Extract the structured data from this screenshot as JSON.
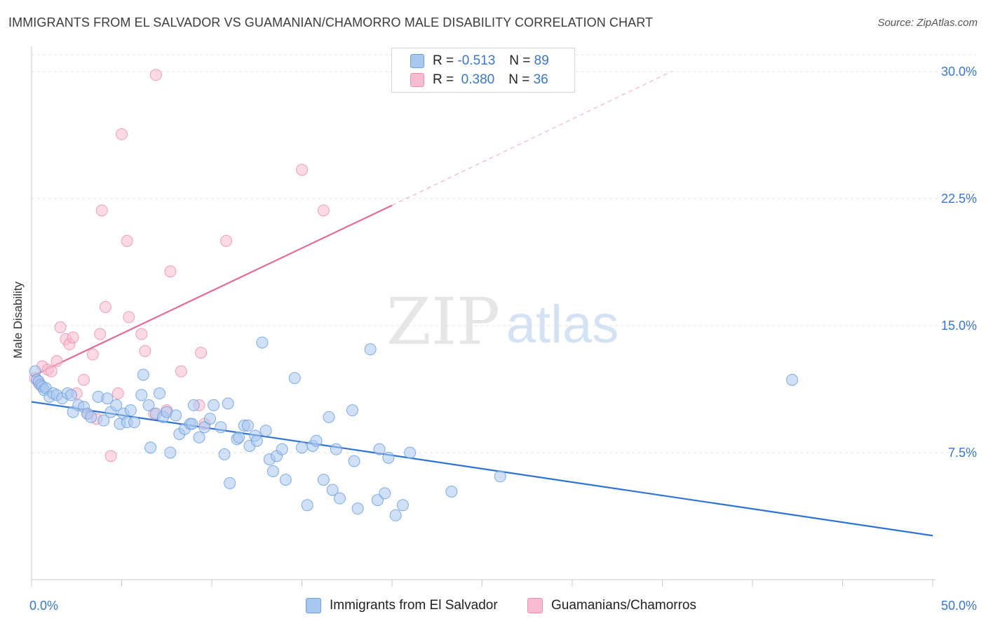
{
  "title": "IMMIGRANTS FROM EL SALVADOR VS GUAMANIAN/CHAMORRO MALE DISABILITY CORRELATION CHART",
  "source": "Source: ZipAtlas.com",
  "watermark": {
    "zip": "ZIP",
    "atlas": "atlas"
  },
  "colors": {
    "blue_fill": "#a9c8f0",
    "blue_stroke": "#6d9fdc",
    "blue_line": "#2f73d0",
    "pink_fill": "#f7bcd0",
    "pink_stroke": "#e893ae",
    "pink_line": "#e06c96",
    "tick_text": "#3a78c4",
    "grid": "#e0e0e0"
  },
  "legend": {
    "rows": [
      {
        "r_label": "R =",
        "r_value": "-0.513",
        "n_label": "N =",
        "n_value": "89"
      },
      {
        "r_label": "R =",
        "r_value": " 0.380",
        "n_label": "N =",
        "n_value": "36"
      }
    ]
  },
  "chart_data": {
    "type": "scatter",
    "title": "IMMIGRANTS FROM EL SALVADOR VS GUAMANIAN/CHAMORRO MALE DISABILITY CORRELATION CHART",
    "xlabel": "",
    "ylabel": "Male Disability",
    "xlim": [
      0,
      50
    ],
    "ylim": [
      0,
      31.2
    ],
    "x_tick_labels": [
      "0.0%",
      "50.0%"
    ],
    "y_ticks": [
      7.5,
      15.0,
      22.5,
      30.0
    ],
    "y_tick_labels": [
      "7.5%",
      "15.0%",
      "22.5%",
      "30.0%"
    ],
    "grid": true,
    "legend_position": "top-center",
    "series": [
      {
        "name": "Immigrants from El Salvador",
        "color": "#a9c8f0",
        "regression": {
          "x0": 0,
          "y0": 10.5,
          "x1": 50,
          "y1": 2.6
        },
        "points": [
          [
            0.2,
            12.3
          ],
          [
            0.3,
            11.8
          ],
          [
            0.4,
            11.7
          ],
          [
            0.5,
            11.5
          ],
          [
            0.6,
            11.4
          ],
          [
            0.7,
            11.2
          ],
          [
            0.8,
            11.3
          ],
          [
            1.0,
            10.8
          ],
          [
            1.2,
            11.0
          ],
          [
            1.4,
            10.9
          ],
          [
            1.7,
            10.7
          ],
          [
            2.0,
            11.0
          ],
          [
            2.2,
            10.9
          ],
          [
            2.3,
            9.9
          ],
          [
            2.6,
            10.3
          ],
          [
            2.9,
            10.2
          ],
          [
            3.1,
            9.8
          ],
          [
            3.3,
            9.6
          ],
          [
            3.7,
            10.8
          ],
          [
            4.0,
            9.4
          ],
          [
            4.2,
            10.7
          ],
          [
            4.4,
            9.9
          ],
          [
            4.7,
            10.3
          ],
          [
            4.9,
            9.2
          ],
          [
            5.1,
            9.8
          ],
          [
            5.3,
            9.3
          ],
          [
            5.5,
            10.0
          ],
          [
            5.7,
            9.3
          ],
          [
            6.1,
            10.9
          ],
          [
            6.2,
            12.1
          ],
          [
            6.5,
            10.3
          ],
          [
            6.6,
            7.8
          ],
          [
            6.9,
            9.8
          ],
          [
            7.1,
            11.0
          ],
          [
            7.3,
            9.6
          ],
          [
            7.5,
            9.9
          ],
          [
            7.7,
            7.5
          ],
          [
            8.0,
            9.7
          ],
          [
            8.2,
            8.6
          ],
          [
            8.5,
            8.9
          ],
          [
            8.8,
            9.2
          ],
          [
            8.9,
            9.2
          ],
          [
            9.0,
            10.3
          ],
          [
            9.3,
            8.4
          ],
          [
            9.6,
            9.0
          ],
          [
            9.9,
            9.5
          ],
          [
            10.1,
            10.3
          ],
          [
            10.5,
            9.0
          ],
          [
            10.7,
            7.4
          ],
          [
            10.9,
            10.4
          ],
          [
            11.0,
            5.7
          ],
          [
            11.4,
            8.3
          ],
          [
            11.5,
            8.4
          ],
          [
            11.8,
            9.1
          ],
          [
            12.0,
            9.1
          ],
          [
            12.1,
            7.9
          ],
          [
            12.4,
            8.5
          ],
          [
            12.5,
            8.2
          ],
          [
            12.8,
            14.0
          ],
          [
            13.0,
            8.8
          ],
          [
            13.2,
            7.1
          ],
          [
            13.4,
            6.4
          ],
          [
            13.6,
            7.3
          ],
          [
            13.9,
            7.7
          ],
          [
            14.1,
            5.9
          ],
          [
            14.6,
            11.9
          ],
          [
            15.0,
            7.8
          ],
          [
            15.3,
            4.4
          ],
          [
            15.6,
            7.9
          ],
          [
            15.8,
            8.2
          ],
          [
            16.2,
            5.9
          ],
          [
            16.5,
            9.6
          ],
          [
            16.7,
            5.3
          ],
          [
            16.9,
            7.7
          ],
          [
            17.1,
            4.8
          ],
          [
            17.8,
            10.0
          ],
          [
            17.9,
            7.0
          ],
          [
            18.1,
            4.2
          ],
          [
            18.8,
            13.6
          ],
          [
            19.2,
            4.7
          ],
          [
            19.3,
            7.7
          ],
          [
            19.6,
            5.1
          ],
          [
            19.8,
            7.2
          ],
          [
            20.2,
            3.8
          ],
          [
            20.6,
            4.4
          ],
          [
            21.0,
            7.5
          ],
          [
            23.3,
            5.2
          ],
          [
            26.0,
            6.1
          ],
          [
            42.2,
            11.8
          ]
        ]
      },
      {
        "name": "Guamanians/Chamorros",
        "color": "#f7bcd0",
        "regression": {
          "x0": 0,
          "y0": 12.0,
          "x1": 20,
          "y1": 22.1,
          "dashed_to_x": 35.5,
          "dashed_to_y": 30.0
        },
        "points": [
          [
            0.2,
            11.9
          ],
          [
            0.4,
            11.6
          ],
          [
            0.6,
            12.6
          ],
          [
            0.9,
            12.4
          ],
          [
            1.1,
            12.3
          ],
          [
            1.4,
            12.9
          ],
          [
            1.6,
            14.9
          ],
          [
            1.9,
            14.2
          ],
          [
            2.1,
            13.9
          ],
          [
            2.3,
            14.3
          ],
          [
            2.5,
            11.0
          ],
          [
            2.9,
            11.8
          ],
          [
            3.1,
            9.8
          ],
          [
            3.4,
            13.3
          ],
          [
            3.6,
            9.5
          ],
          [
            3.8,
            14.5
          ],
          [
            3.9,
            21.8
          ],
          [
            4.1,
            16.1
          ],
          [
            4.4,
            7.3
          ],
          [
            4.8,
            11.0
          ],
          [
            5.0,
            26.3
          ],
          [
            5.3,
            20.0
          ],
          [
            5.4,
            15.5
          ],
          [
            6.1,
            14.5
          ],
          [
            6.3,
            13.5
          ],
          [
            6.8,
            9.8
          ],
          [
            6.9,
            29.8
          ],
          [
            7.5,
            10.0
          ],
          [
            7.7,
            18.2
          ],
          [
            8.3,
            12.3
          ],
          [
            9.3,
            10.3
          ],
          [
            9.4,
            13.4
          ],
          [
            9.6,
            9.2
          ],
          [
            10.8,
            20.0
          ],
          [
            15.0,
            24.2
          ],
          [
            16.2,
            21.8
          ]
        ]
      }
    ]
  }
}
